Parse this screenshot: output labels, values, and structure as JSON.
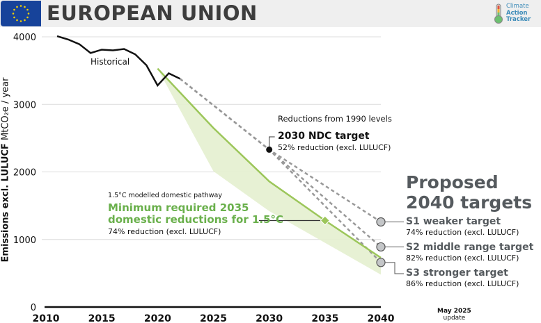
{
  "header": {
    "title": "EUROPEAN UNION",
    "flag_icon": "eu-flag-icon",
    "logo": {
      "line1": "Climate",
      "line2": "Action",
      "line3": "Tracker",
      "icon": "thermometer-icon"
    }
  },
  "colors": {
    "historical": "#111111",
    "pathway_green": "#9cc65a",
    "band_green": "#e4efcf",
    "dashed_gray": "#999999",
    "label_green": "#6ab04c",
    "proposed_gray": "#555a5e",
    "marker_gray": "#c4c6c8"
  },
  "update": {
    "line1": "May 2025",
    "line2": "update"
  },
  "chart_data": {
    "type": "line",
    "title": "EUROPEAN UNION",
    "ylabel_bold": "Emissions excl. LULUCF",
    "ylabel_unit": "MtCO₂e / year",
    "xlabel": "",
    "xlim": [
      2010,
      2040
    ],
    "ylim": [
      0,
      4000
    ],
    "xticks": [
      2010,
      2015,
      2020,
      2025,
      2030,
      2035,
      2040
    ],
    "yticks": [
      0,
      1000,
      2000,
      3000,
      4000
    ],
    "grid": true,
    "series": [
      {
        "name": "Historical",
        "label": "Historical",
        "style": "solid-black",
        "x": [
          2011,
          2012,
          2013,
          2014,
          2015,
          2016,
          2017,
          2018,
          2019,
          2020,
          2021,
          2022
        ],
        "y": [
          4010,
          3960,
          3890,
          3760,
          3810,
          3800,
          3820,
          3740,
          3580,
          3280,
          3460,
          3380
        ]
      },
      {
        "name": "1.5°C modelled domestic pathway",
        "style": "solid-green",
        "x": [
          2020,
          2025,
          2030,
          2035,
          2040
        ],
        "y": [
          3530,
          2650,
          1860,
          1280,
          730
        ]
      },
      {
        "name": "1.5°C pathway range lower bound",
        "style": "band-bottom",
        "x": [
          2020,
          2025,
          2030,
          2040
        ],
        "y": [
          3530,
          2010,
          1420,
          480
        ]
      },
      {
        "name": "Path to S1 weaker target",
        "style": "dashed-gray",
        "x": [
          2022,
          2030,
          2040
        ],
        "y": [
          3380,
          2330,
          1260
        ]
      },
      {
        "name": "Path to S2 middle range target",
        "style": "dashed-gray",
        "x": [
          2022,
          2030,
          2040
        ],
        "y": [
          3380,
          2330,
          890
        ]
      },
      {
        "name": "Path to S3 stronger target",
        "style": "dashed-gray",
        "x": [
          2022,
          2030,
          2040
        ],
        "y": [
          3380,
          2330,
          660
        ]
      }
    ],
    "markers": [
      {
        "name": "2030 NDC target",
        "x": 2030,
        "y": 2330,
        "shape": "circle",
        "color": "#111111"
      },
      {
        "name": "Minimum required 2035",
        "x": 2035,
        "y": 1280,
        "shape": "diamond",
        "color": "#9cc65a"
      },
      {
        "name": "S1",
        "x": 2040,
        "y": 1260,
        "shape": "circle",
        "color": "#c4c6c8"
      },
      {
        "name": "S2",
        "x": 2040,
        "y": 890,
        "shape": "circle",
        "color": "#c4c6c8"
      },
      {
        "name": "S3",
        "x": 2040,
        "y": 660,
        "shape": "circle",
        "color": "#c4c6c8"
      }
    ],
    "annotations": {
      "reductions_header": "Reductions from 1990 levels",
      "ndc_title": "2030 NDC target",
      "ndc_sub": "52% reduction (excl. LULUCF)",
      "pathway_header": "1.5°C modelled domestic pathway",
      "pathway_title_1": "Minimum required 2035",
      "pathway_title_2": "domestic reductions for 1.5°C",
      "pathway_sub": "74% reduction (excl. LULUCF)",
      "proposed_1": "Proposed",
      "proposed_2": "2040 targets",
      "s1_title": "S1 weaker target",
      "s1_sub": "74% reduction (excl. LULUCF)",
      "s2_title": "S2 middle range target",
      "s2_sub": "82% reduction (excl. LULUCF)",
      "s3_title": "S3 stronger target",
      "s3_sub": "86% reduction (excl. LULUCF)"
    }
  }
}
